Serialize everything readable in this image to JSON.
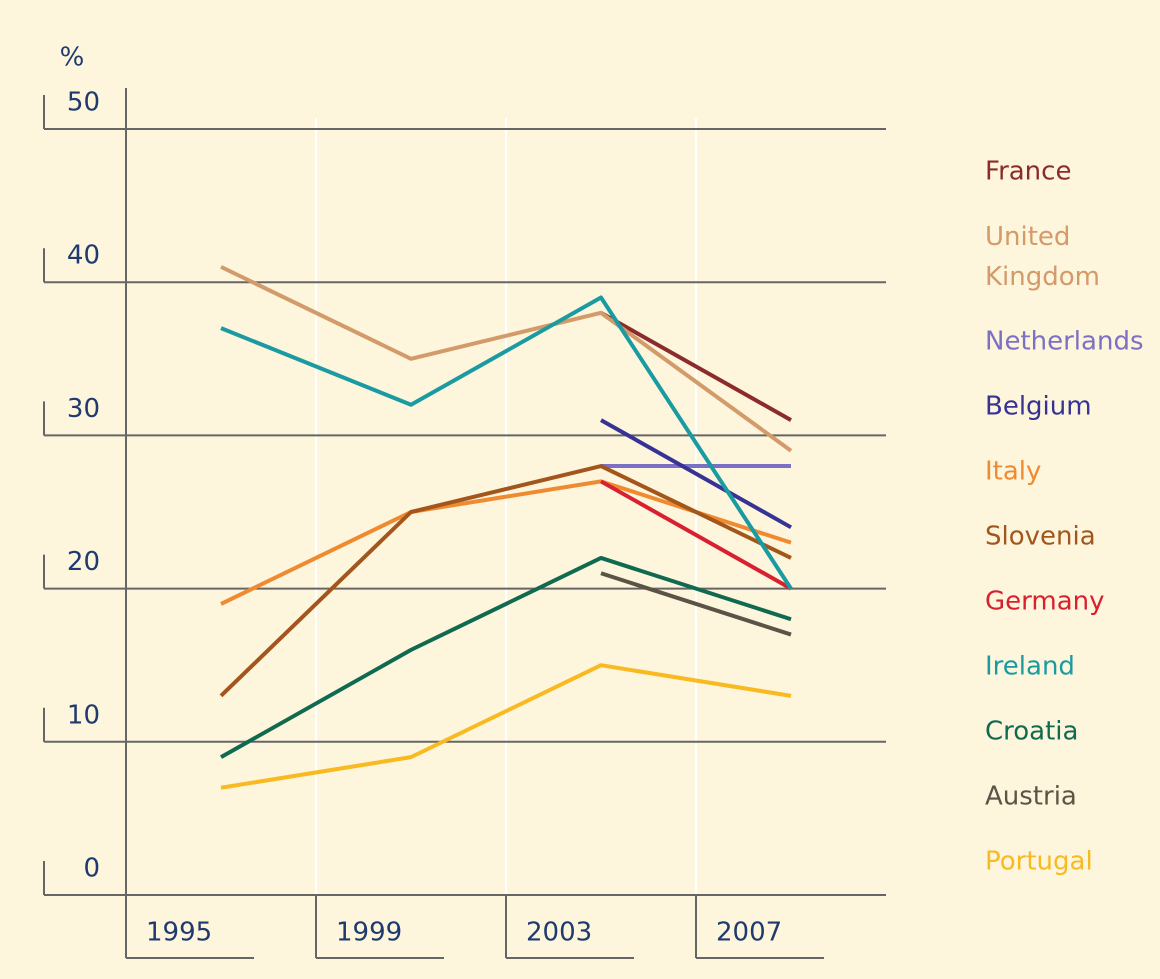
{
  "chart_data": {
    "type": "line",
    "y_label": "%",
    "x": [
      1997,
      2001,
      2005,
      2009
    ],
    "xlim": [
      1995,
      2011
    ],
    "xticks": [
      1995,
      1999,
      2003,
      2007
    ],
    "ylim": [
      0,
      50
    ],
    "yticks": [
      0,
      10,
      20,
      30,
      40,
      50
    ],
    "grid": true,
    "legend": "right",
    "series": [
      {
        "name": "France",
        "color": "#8b2b2b",
        "values": [
          null,
          null,
          38,
          31
        ]
      },
      {
        "name": "United Kingdom",
        "color": "#d39a6a",
        "values": [
          41,
          35,
          38,
          29
        ]
      },
      {
        "name": "Netherlands",
        "color": "#7b70c4",
        "values": [
          null,
          null,
          28,
          28
        ]
      },
      {
        "name": "Belgium",
        "color": "#363395",
        "values": [
          null,
          null,
          31,
          24
        ]
      },
      {
        "name": "Italy",
        "color": "#f08a30",
        "values": [
          19,
          25,
          27,
          23
        ]
      },
      {
        "name": "Slovenia",
        "color": "#a3561c",
        "values": [
          13,
          25,
          28,
          22
        ]
      },
      {
        "name": "Germany",
        "color": "#d82030",
        "values": [
          null,
          null,
          27,
          20
        ]
      },
      {
        "name": "Ireland",
        "color": "#1a9ba2",
        "values": [
          37,
          32,
          39,
          20
        ]
      },
      {
        "name": "Croatia",
        "color": "#0f6a50",
        "values": [
          9,
          16,
          22,
          18
        ]
      },
      {
        "name": "Austria",
        "color": "#5a5446",
        "values": [
          null,
          null,
          21,
          17
        ]
      },
      {
        "name": "Portugal",
        "color": "#f9b920",
        "values": [
          7,
          9,
          15,
          13
        ]
      }
    ]
  }
}
